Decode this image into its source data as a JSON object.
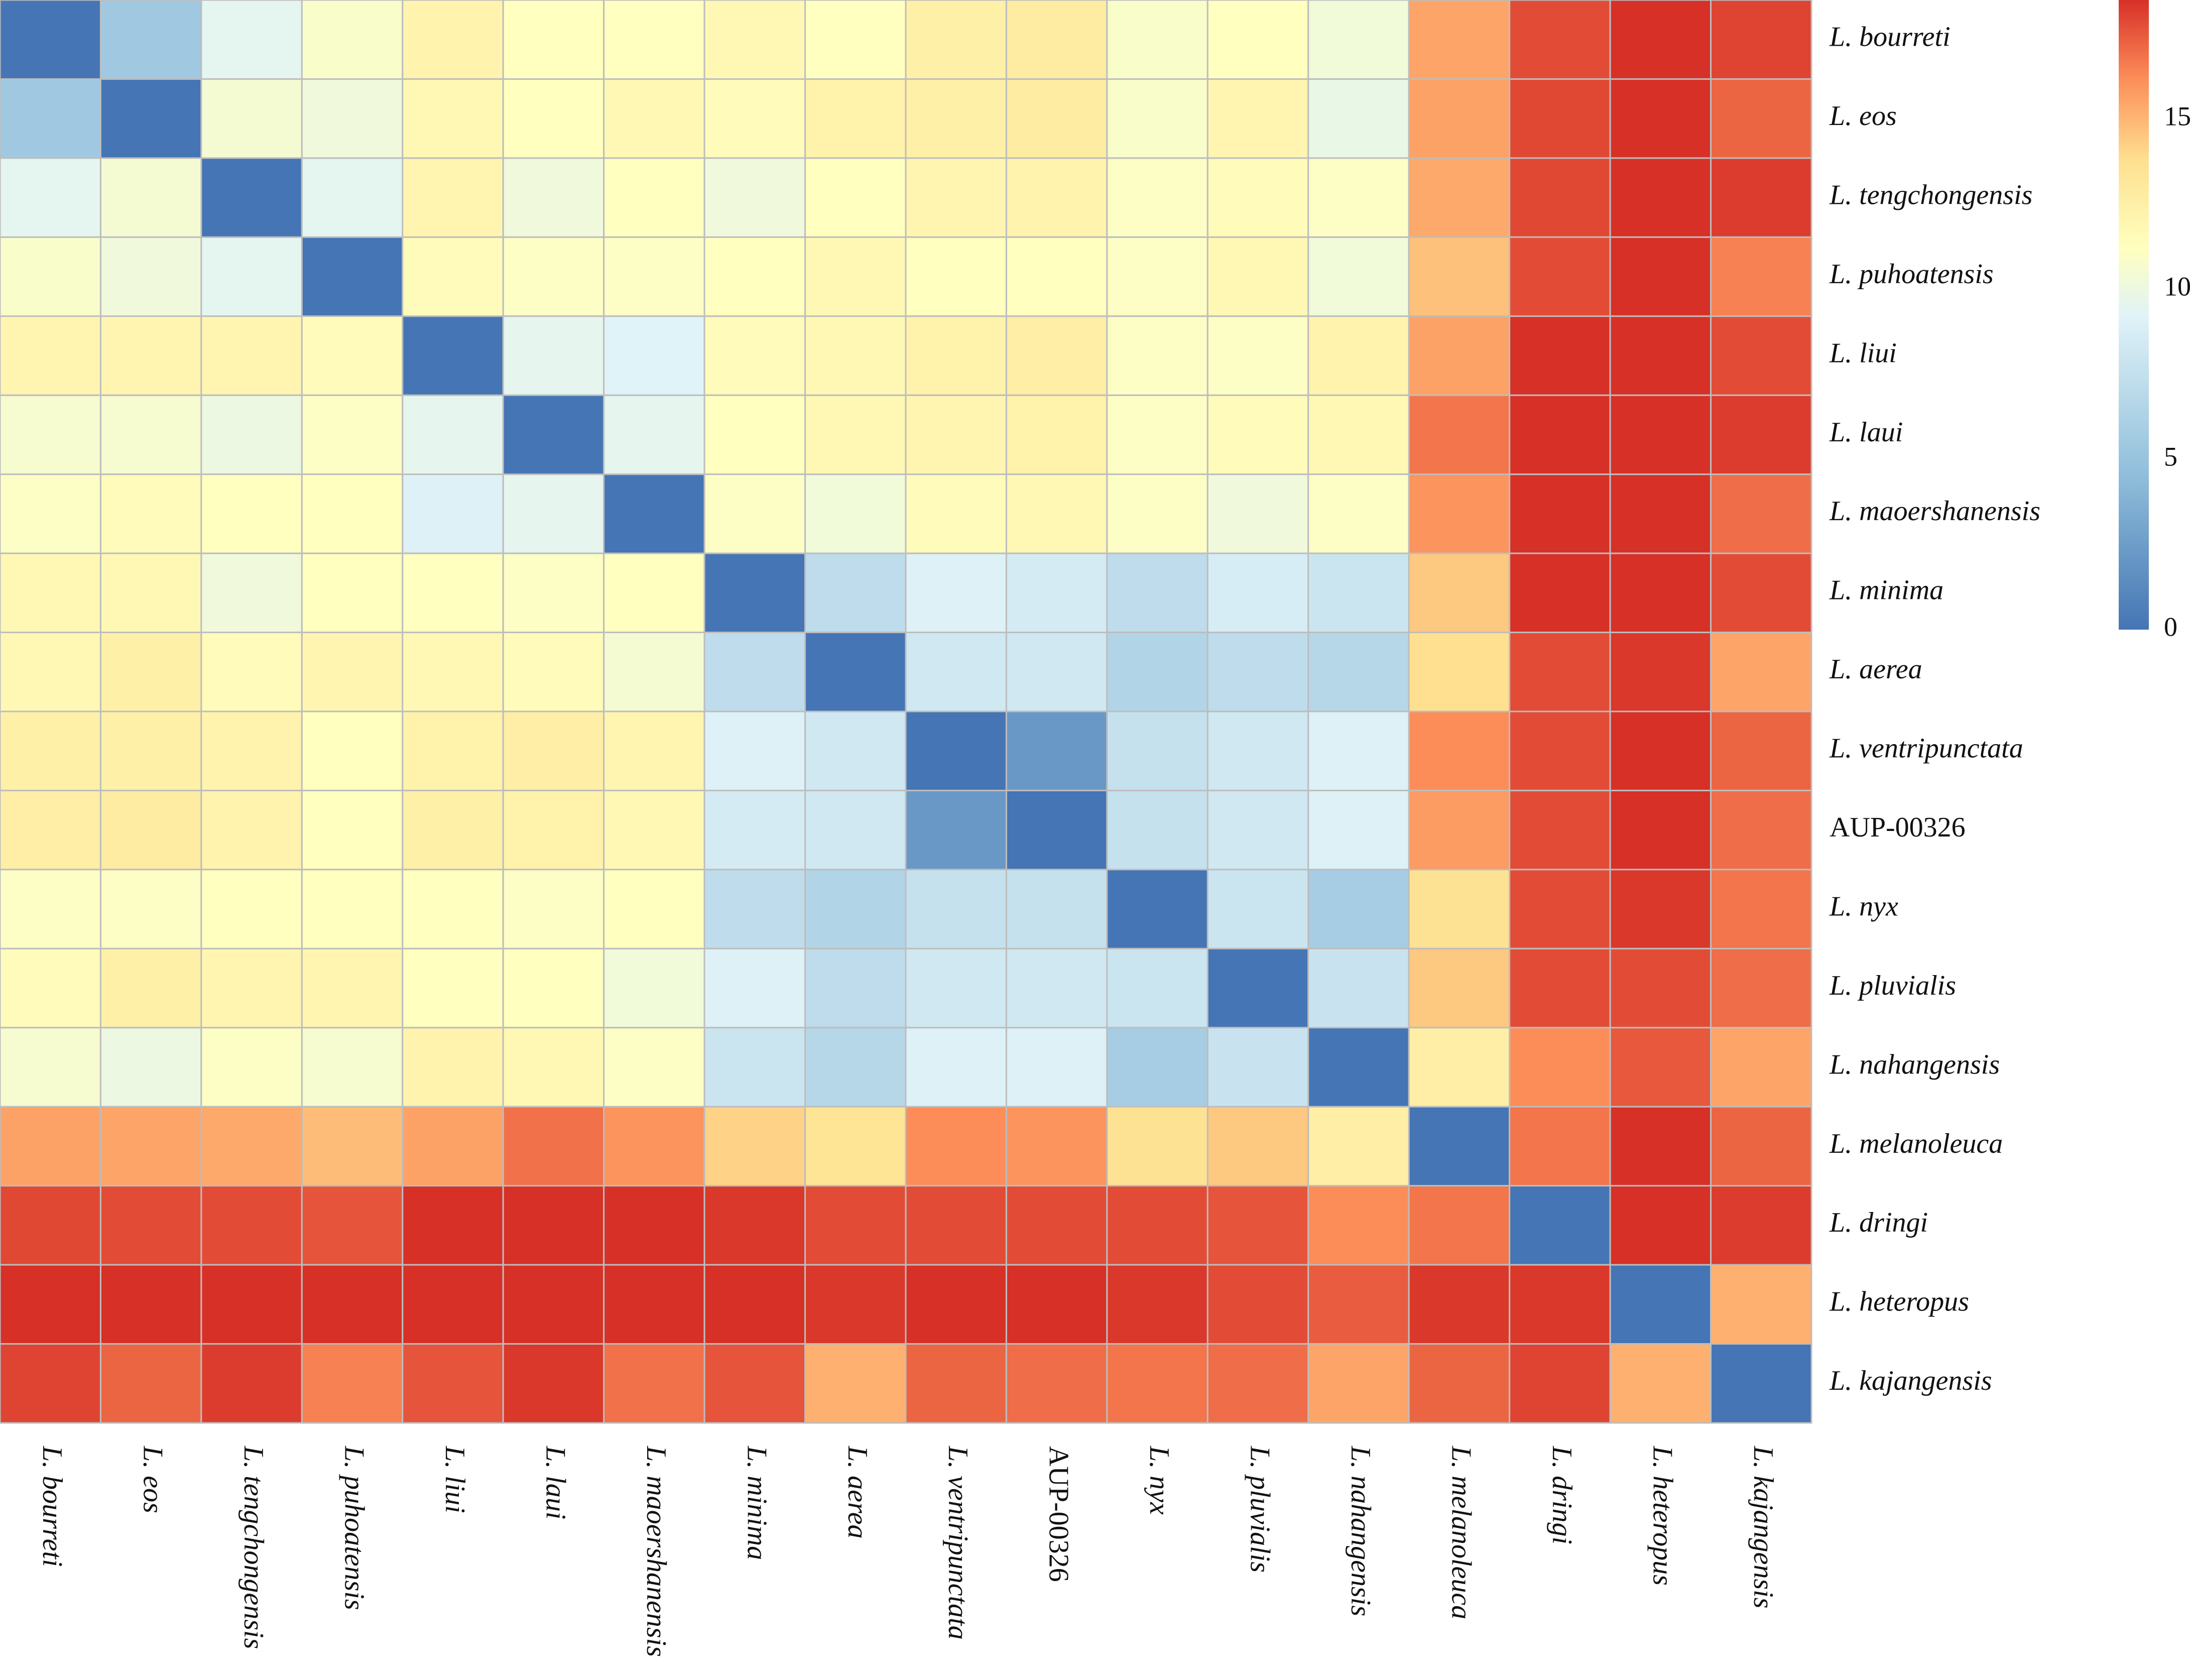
{
  "chart_data": {
    "type": "heatmap",
    "title": "",
    "xlabel": "",
    "ylabel": "",
    "labels": [
      {
        "text": "L. bourreti",
        "italic": true
      },
      {
        "text": "L. eos",
        "italic": true
      },
      {
        "text": "L. tengchongensis",
        "italic": true
      },
      {
        "text": "L. puhoatensis",
        "italic": true
      },
      {
        "text": "L. liui",
        "italic": true
      },
      {
        "text": "L. laui",
        "italic": true
      },
      {
        "text": "L. maoershanensis",
        "italic": true
      },
      {
        "text": "L. minima",
        "italic": true
      },
      {
        "text": "L. aerea",
        "italic": true
      },
      {
        "text": "L. ventripunctata",
        "italic": true
      },
      {
        "text": "AUP-00326",
        "italic": false
      },
      {
        "text": "L. nyx",
        "italic": true
      },
      {
        "text": "L. pluvialis",
        "italic": true
      },
      {
        "text": "L. nahangensis",
        "italic": true
      },
      {
        "text": "L. melanoleuca",
        "italic": true
      },
      {
        "text": "L. dringi",
        "italic": true
      },
      {
        "text": "L. heteropus",
        "italic": true
      },
      {
        "text": "L. kajangensis",
        "italic": true
      }
    ],
    "matrix": [
      [
        0,
        5.5,
        9.5,
        10.8,
        12.2,
        11.2,
        11.2,
        11.8,
        11.2,
        12.5,
        12.8,
        10.8,
        11.2,
        10.3,
        15.5,
        17.8,
        18.5,
        18.0
      ],
      [
        5.5,
        0,
        10.5,
        10.2,
        11.8,
        11.2,
        11.8,
        11.5,
        12.3,
        12.5,
        12.8,
        10.8,
        12.0,
        9.8,
        15.6,
        17.9,
        18.5,
        17.2
      ],
      [
        9.5,
        10.5,
        0,
        9.5,
        12.0,
        10.2,
        11.2,
        10.2,
        11.2,
        12.0,
        12.2,
        11.0,
        11.5,
        11.0,
        15.4,
        17.9,
        18.5,
        18.2
      ],
      [
        10.8,
        10.2,
        9.5,
        0,
        11.5,
        11.0,
        11.0,
        11.2,
        11.8,
        11.2,
        11.2,
        11.0,
        11.8,
        10.3,
        14.7,
        17.8,
        18.5,
        16.5
      ],
      [
        12.0,
        12.0,
        12.0,
        11.5,
        0,
        9.6,
        9.2,
        11.5,
        11.8,
        12.3,
        12.6,
        11.0,
        11.0,
        12.2,
        15.6,
        18.5,
        18.5,
        17.8
      ],
      [
        10.6,
        10.6,
        10.0,
        11.0,
        9.6,
        0,
        9.6,
        11.2,
        11.8,
        12.0,
        12.3,
        11.0,
        11.5,
        11.8,
        16.8,
        18.5,
        18.5,
        18.2
      ],
      [
        11.0,
        11.5,
        11.2,
        11.2,
        9.0,
        9.6,
        0,
        11.0,
        10.3,
        11.5,
        11.8,
        11.0,
        10.2,
        11.0,
        16.0,
        18.5,
        18.5,
        17.0
      ],
      [
        11.8,
        11.8,
        10.2,
        11.2,
        11.2,
        11.0,
        11.2,
        0,
        7.2,
        9.0,
        8.5,
        7.2,
        8.7,
        8.0,
        14.5,
        18.5,
        18.5,
        17.8
      ],
      [
        11.8,
        12.5,
        11.5,
        12.0,
        11.8,
        11.5,
        10.5,
        7.2,
        0,
        8.2,
        8.2,
        6.5,
        7.2,
        6.7,
        13.8,
        17.8,
        18.3,
        15.5
      ],
      [
        12.5,
        12.5,
        12.2,
        11.2,
        12.3,
        12.6,
        12.0,
        9.0,
        8.2,
        0,
        2.2,
        7.6,
        8.2,
        9.0,
        16.2,
        17.8,
        18.5,
        17.2
      ],
      [
        12.6,
        12.8,
        12.2,
        11.2,
        12.5,
        12.3,
        11.8,
        8.5,
        8.2,
        2.2,
        0,
        7.6,
        8.2,
        9.0,
        15.8,
        17.8,
        18.5,
        17.0
      ],
      [
        11.0,
        11.0,
        11.2,
        11.2,
        11.2,
        11.0,
        11.2,
        7.2,
        6.5,
        7.6,
        7.6,
        0,
        8.0,
        5.8,
        13.6,
        17.8,
        18.3,
        16.8
      ],
      [
        11.5,
        12.5,
        12.0,
        12.0,
        11.2,
        11.2,
        10.3,
        9.0,
        7.2,
        8.2,
        8.2,
        8.0,
        0,
        7.8,
        14.5,
        17.8,
        17.8,
        17.0
      ],
      [
        10.6,
        10.0,
        11.0,
        10.6,
        12.2,
        11.8,
        11.0,
        8.0,
        6.7,
        9.0,
        9.0,
        5.8,
        7.8,
        0,
        12.6,
        16.2,
        17.5,
        15.5
      ],
      [
        15.6,
        15.5,
        15.4,
        14.8,
        15.6,
        16.9,
        16.0,
        14.2,
        13.5,
        16.2,
        16.0,
        13.6,
        14.5,
        12.6,
        0,
        16.8,
        18.5,
        17.2
      ],
      [
        17.9,
        17.8,
        17.8,
        17.6,
        18.5,
        18.5,
        18.5,
        18.3,
        17.8,
        17.8,
        17.8,
        17.8,
        17.6,
        16.2,
        16.8,
        0,
        18.5,
        18.2
      ],
      [
        18.5,
        18.5,
        18.5,
        18.5,
        18.5,
        18.5,
        18.5,
        18.5,
        18.3,
        18.5,
        18.5,
        18.3,
        17.8,
        17.4,
        18.3,
        18.3,
        0,
        15.2
      ],
      [
        18.0,
        17.2,
        18.2,
        16.5,
        17.6,
        18.3,
        16.9,
        17.6,
        15.2,
        17.2,
        17.0,
        16.8,
        17.0,
        15.5,
        17.2,
        18.0,
        15.2,
        0
      ]
    ],
    "color_scale": {
      "stops": [
        {
          "value": 0,
          "color": "#4575b4"
        },
        {
          "value": 4.6,
          "color": "#91bfdb"
        },
        {
          "value": 9.2,
          "color": "#e0f3f8"
        },
        {
          "value": 11.2,
          "color": "#ffffbf"
        },
        {
          "value": 13.8,
          "color": "#fee090"
        },
        {
          "value": 16.2,
          "color": "#fc8d59"
        },
        {
          "value": 18.5,
          "color": "#d73027"
        }
      ],
      "range": [
        0,
        18.5
      ]
    },
    "legend": {
      "placement": "top-right",
      "ticks": [
        0,
        5,
        10,
        15
      ],
      "tick_labels": [
        "0",
        "5",
        "10",
        "15"
      ]
    },
    "grid": true,
    "grid_color": "#bdbdbd"
  }
}
